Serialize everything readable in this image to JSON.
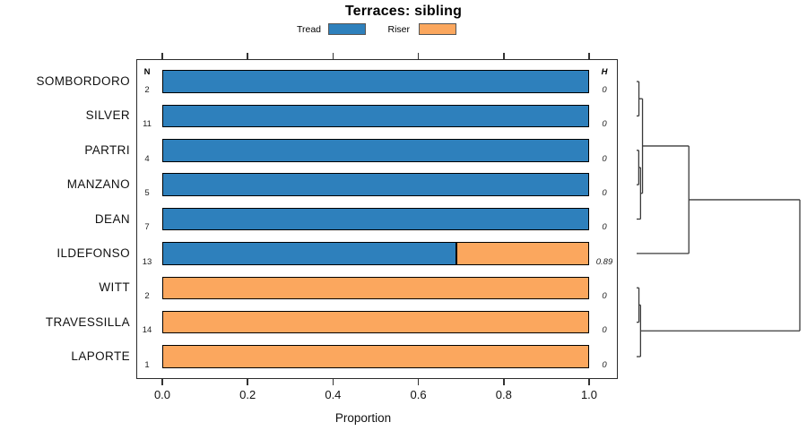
{
  "title": "Terraces: sibling",
  "legend": {
    "items": [
      {
        "label": "Tread",
        "color": "#2E80BC"
      },
      {
        "label": "Riser",
        "color": "#FBA75E"
      }
    ]
  },
  "columns": {
    "n_header": "N",
    "h_header": "H"
  },
  "axis": {
    "xlabel": "Proportion",
    "tick_labels": [
      "0.0",
      "0.2",
      "0.4",
      "0.6",
      "0.8",
      "1.0"
    ],
    "tick_values": [
      0.0,
      0.2,
      0.4,
      0.6,
      0.8,
      1.0
    ]
  },
  "colors": {
    "tread": "#2E80BC",
    "riser": "#FBA75E",
    "bar_border": "#000000",
    "dendrogram_line": "#3a3a3a"
  },
  "chart_data": {
    "type": "bar",
    "orientation": "horizontal",
    "stacked": true,
    "title": "Terraces: sibling",
    "xlabel": "Proportion",
    "xlim": [
      0,
      1
    ],
    "grid": false,
    "legend_position": "top",
    "categories": [
      "SOMBORDORO",
      "SILVER",
      "PARTRI",
      "MANZANO",
      "DEAN",
      "ILDEFONSO",
      "WITT",
      "TRAVESSILLA",
      "LAPORTE"
    ],
    "series": [
      {
        "name": "Tread",
        "color": "#2E80BC",
        "values": [
          1,
          1,
          1,
          1,
          1,
          0.69,
          0,
          0,
          0
        ]
      },
      {
        "name": "Riser",
        "color": "#FBA75E",
        "values": [
          0,
          0,
          0,
          0,
          0,
          0.31,
          1,
          1,
          1
        ]
      }
    ],
    "n_values": [
      2,
      11,
      4,
      5,
      7,
      13,
      2,
      14,
      1
    ],
    "h_values": [
      "0",
      "0",
      "0",
      "0",
      "0",
      "0.89",
      "0",
      "0",
      "0"
    ]
  },
  "dendrogram": {
    "tree": {
      "h": 1.0,
      "children": [
        {
          "h": 0.32,
          "children": [
            {
              "h": 0.036,
              "children": [
                {
                  "h": 0.014,
                  "children": [
                    {
                      "leaf": "SOMBORDORO"
                    },
                    {
                      "leaf": "SILVER"
                    }
                  ]
                },
                {
                  "h": 0.024,
                  "children": [
                    {
                      "h": 0.013,
                      "children": [
                        {
                          "leaf": "PARTRI"
                        },
                        {
                          "leaf": "MANZANO"
                        }
                      ]
                    },
                    {
                      "leaf": "DEAN"
                    }
                  ]
                }
              ]
            },
            {
              "leaf": "ILDEFONSO"
            }
          ]
        },
        {
          "h": 0.024,
          "children": [
            {
              "h": 0.014,
              "children": [
                {
                  "leaf": "WITT"
                },
                {
                  "leaf": "TRAVESSILLA"
                }
              ]
            },
            {
              "leaf": "LAPORTE"
            }
          ]
        }
      ]
    }
  }
}
